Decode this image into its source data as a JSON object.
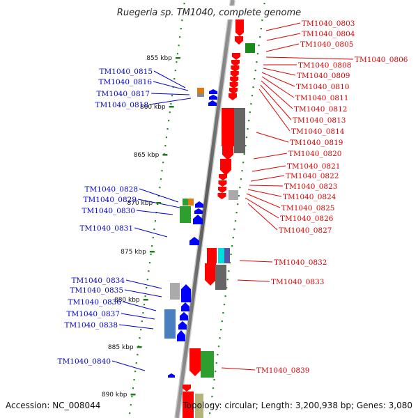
{
  "header": {
    "title": "Ruegeria sp. TM1040, complete genome"
  },
  "footer": {
    "accession": "Accession: NC_008044",
    "summary": "Topology: circular; Length: 3,200,938 bp; Genes: 3,080"
  },
  "ruler": {
    "ticks": [
      {
        "label": "855 kbp"
      },
      {
        "label": "860 kbp"
      },
      {
        "label": "865 kbp"
      },
      {
        "label": "870 kbp"
      },
      {
        "label": "875 kbp"
      },
      {
        "label": "880 kbp"
      },
      {
        "label": "885 kbp"
      },
      {
        "label": "890 kbp"
      }
    ]
  },
  "genes_forward": [
    "TM1040_0803",
    "TM1040_0804",
    "TM1040_0805",
    "TM1040_0806",
    "TM1040_0808",
    "TM1040_0809",
    "TM1040_0810",
    "TM1040_0811",
    "TM1040_0812",
    "TM1040_0813",
    "TM1040_0814",
    "TM1040_0819",
    "TM1040_0820",
    "TM1040_0821",
    "TM1040_0822",
    "TM1040_0823",
    "TM1040_0824",
    "TM1040_0825",
    "TM1040_0826",
    "TM1040_0827",
    "TM1040_0832",
    "TM1040_0833",
    "TM1040_0839"
  ],
  "genes_reverse": [
    "TM1040_0815",
    "TM1040_0816",
    "TM1040_0817",
    "TM1040_0818",
    "TM1040_0828",
    "TM1040_0829",
    "TM1040_0830",
    "TM1040_0831",
    "TM1040_0834",
    "TM1040_0835",
    "TM1040_0836",
    "TM1040_0837",
    "TM1040_0838",
    "TM1040_0840"
  ],
  "colors": {
    "forward_label": "#dd0000",
    "reverse_label": "#0000cc",
    "cds_forward": "#ff0000",
    "cds_reverse": "#0000ff",
    "rna_green": "#2e9e2e",
    "misc_gray": "#888888",
    "backbone": "#777777"
  }
}
